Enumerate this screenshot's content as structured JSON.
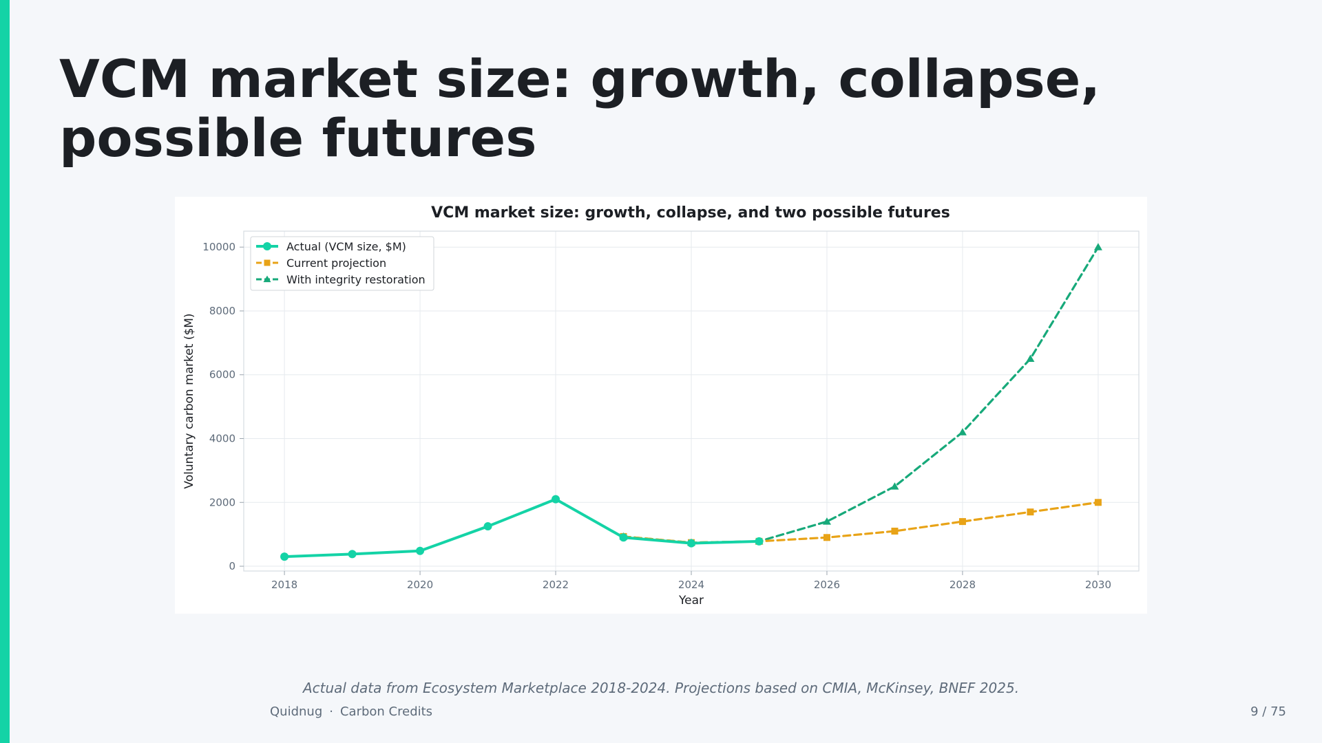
{
  "slide": {
    "title": "VCM market size: growth, collapse, possible futures",
    "caption": "Actual data from Ecosystem Marketplace 2018-2024. Projections based on CMIA, McKinsey, BNEF 2025.",
    "footer_brand": "Quidnug",
    "footer_separator": "·",
    "footer_section": "Carbon Credits",
    "page_number": "9 / 75"
  },
  "colors": {
    "accent": "#14d3a6",
    "actual": "#14d3a6",
    "current_projection": "#e8a317",
    "integrity_restoration": "#17a97a"
  },
  "chart_data": {
    "type": "line",
    "title": "VCM market size: growth, collapse, and two possible futures",
    "xlabel": "Year",
    "ylabel": "Voluntary carbon market ($M)",
    "xlim": [
      2017.4,
      2030.6
    ],
    "ylim": [
      -150,
      10500
    ],
    "x_ticks": [
      2018,
      2020,
      2022,
      2024,
      2026,
      2028,
      2030
    ],
    "y_ticks": [
      0,
      2000,
      4000,
      6000,
      8000,
      10000
    ],
    "grid": true,
    "legend_position": "top-left",
    "series": [
      {
        "name": "Actual (VCM size, $M)",
        "color": "#14d3a6",
        "style": "solid",
        "marker": "circle",
        "x": [
          2018,
          2019,
          2020,
          2021,
          2022,
          2023,
          2024,
          2025
        ],
        "values": [
          300,
          380,
          480,
          1250,
          2100,
          900,
          720,
          780
        ]
      },
      {
        "name": "Current projection",
        "color": "#e8a317",
        "style": "dashed",
        "marker": "square",
        "x": [
          2023,
          2024,
          2025,
          2026,
          2027,
          2028,
          2029,
          2030
        ],
        "values": [
          930,
          740,
          780,
          900,
          1100,
          1400,
          1700,
          2000
        ]
      },
      {
        "name": "With integrity restoration",
        "color": "#17a97a",
        "style": "dashed",
        "marker": "triangle",
        "x": [
          2023,
          2024,
          2025,
          2026,
          2027,
          2028,
          2029,
          2030
        ],
        "values": [
          930,
          740,
          780,
          1400,
          2500,
          4200,
          6500,
          10000
        ]
      }
    ]
  }
}
